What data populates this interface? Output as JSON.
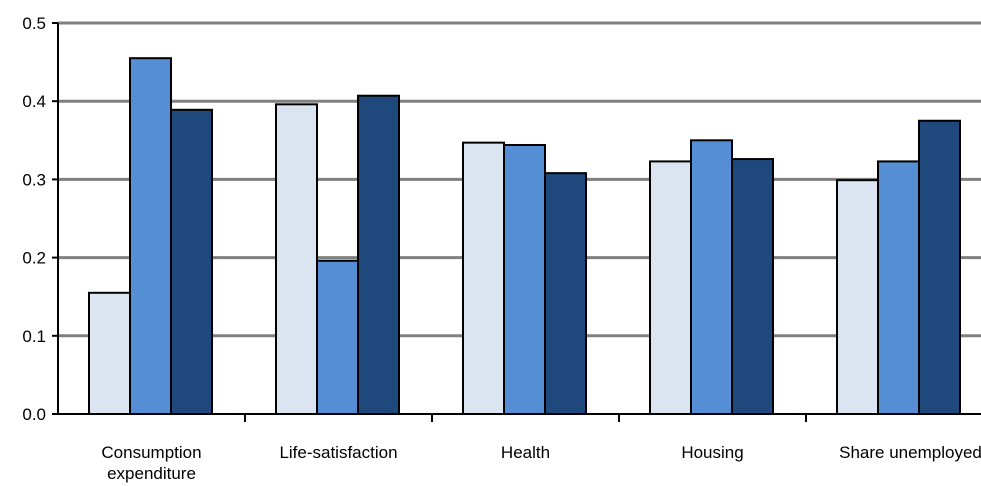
{
  "chart_data": {
    "type": "bar",
    "title": "",
    "xlabel": "",
    "ylabel": "",
    "ylim": [
      0,
      0.5
    ],
    "yticks": [
      "0.0",
      "0.1",
      "0.2",
      "0.3",
      "0.4",
      "0.5"
    ],
    "grid": true,
    "legend": "none",
    "categories": [
      [
        "Consumption",
        "expenditure"
      ],
      [
        "Life-satisfaction"
      ],
      [
        "Health"
      ],
      [
        "Housing"
      ],
      [
        "Share unemployed"
      ]
    ],
    "series": [
      {
        "color": "#dbe5f1",
        "values": [
          0.155,
          0.396,
          0.347,
          0.323,
          0.299
        ]
      },
      {
        "color": "#558ed5",
        "values": [
          0.455,
          0.196,
          0.344,
          0.35,
          0.323
        ]
      },
      {
        "color": "#1f497d",
        "values": [
          0.389,
          0.407,
          0.308,
          0.326,
          0.375
        ]
      }
    ],
    "colors": {
      "gridline": "#808080",
      "axis": "#000000",
      "bar_outline": "#000000"
    }
  }
}
